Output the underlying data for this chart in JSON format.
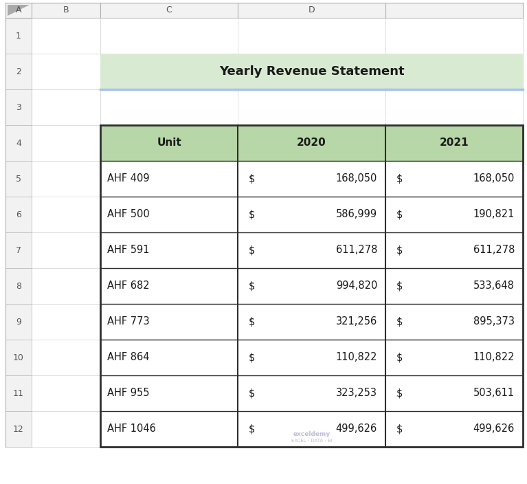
{
  "title": "Yearly Revenue Statement",
  "title_bg_color": "#d9ead3",
  "title_border_bottom_color": "#a4c2f4",
  "header_bg_color": "#b7d7a8",
  "cell_border_color": "#2d2d2d",
  "col_headers": [
    "Unit",
    "2020",
    "2021"
  ],
  "rows": [
    [
      "AHF 409",
      "168,050",
      "168,050"
    ],
    [
      "AHF 500",
      "586,999",
      "190,821"
    ],
    [
      "AHF 591",
      "611,278",
      "611,278"
    ],
    [
      "AHF 682",
      "994,820",
      "533,648"
    ],
    [
      "AHF 773",
      "321,256",
      "895,373"
    ],
    [
      "AHF 864",
      "110,822",
      "110,822"
    ],
    [
      "AHF 955",
      "323,253",
      "503,611"
    ],
    [
      "AHF 1046",
      "499,626",
      "499,626"
    ]
  ],
  "col_labels": [
    "A",
    "B",
    "C",
    "D"
  ],
  "row_labels": [
    "1",
    "2",
    "3",
    "4",
    "5",
    "6",
    "7",
    "8",
    "9",
    "10",
    "11",
    "12"
  ],
  "bg_color": "#ffffff",
  "excel_header_bg": "#f2f2f2",
  "excel_grid_color": "#d0d0d0",
  "excel_border_color": "#b0b0b0",
  "watermark_line1": "exceldemy",
  "watermark_line2": "EXCEL · DATA · BI"
}
